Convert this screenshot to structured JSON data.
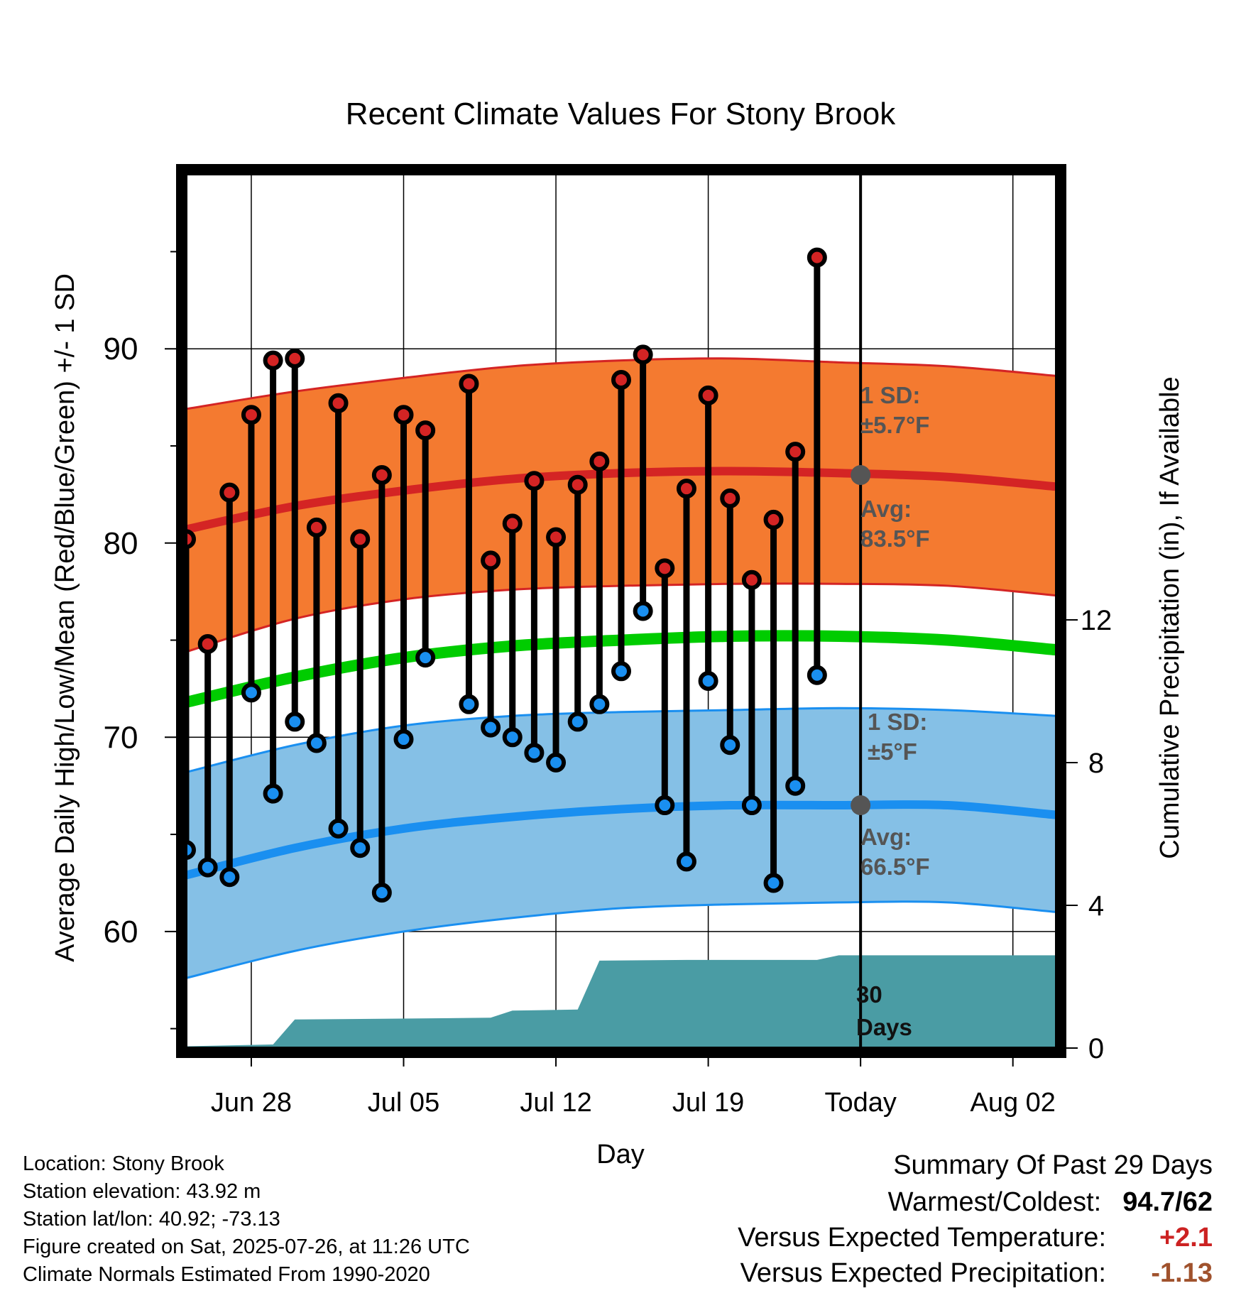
{
  "title": "Recent Climate Values For Stony Brook",
  "y_left_label": "Average Daily High/Low/Mean (Red/Blue/Green) +/- 1 SD",
  "y_right_label": "Cumulative Precipitation (in), If Available",
  "x_label": "Day",
  "annotations": {
    "high_sd_line1": "1 SD:",
    "high_sd_line2": "±5.7°F",
    "high_avg_line1": "Avg:",
    "high_avg_line2": "83.5°F",
    "low_sd_line1": "1 SD:",
    "low_sd_line2": "±5°F",
    "low_avg_line1": "Avg:",
    "low_avg_line2": "66.5°F",
    "days_line1": "30",
    "days_line2": "Days"
  },
  "info": {
    "location": "Location: Stony Brook",
    "elevation": "Station elevation: 43.92 m",
    "latlon": "Station lat/lon: 40.92; -73.13",
    "created": "Figure created on Sat, 2025-07-26, at 11:26 UTC",
    "normals": "Climate Normals Estimated From 1990-2020"
  },
  "summary": {
    "heading": "Summary Of Past 29 Days",
    "warm_cold_label": "Warmest/Coldest:",
    "warm_cold_value": "94.7/62",
    "temp_label": "Versus Expected Temperature:",
    "temp_value": "+2.1",
    "precip_label": "Versus Expected Precipitation:",
    "precip_value": "-1.13"
  },
  "colors": {
    "high_band": "#f47a30",
    "high_line": "#d42424",
    "mean_line": "#00cc00",
    "low_band": "#85c0e6",
    "low_line": "#1a8ff0",
    "precip": "#4a9ca4",
    "annotation_text": "#555555",
    "temp_value": "#cc2222",
    "precip_value": "#a0522d"
  },
  "chart_data": {
    "type": "line",
    "title": "Recent Climate Values For Stony Brook",
    "xlabel": "Day",
    "ylabel": "Average Daily High/Low/Mean (Red/Blue/Green) +/- 1 SD",
    "y2label": "Cumulative Precipitation (in), If Available",
    "x_range": [
      "2025-06-25",
      "2025-08-04"
    ],
    "ylim": [
      54,
      99
    ],
    "y2lim": [
      0,
      24.5
    ],
    "x_ticks": [
      {
        "date": "2025-06-28",
        "label": "Jun 28"
      },
      {
        "date": "2025-07-05",
        "label": "Jul 05"
      },
      {
        "date": "2025-07-12",
        "label": "Jul 12"
      },
      {
        "date": "2025-07-19",
        "label": "Jul 19"
      },
      {
        "date": "2025-07-26",
        "label": "Today"
      },
      {
        "date": "2025-08-02",
        "label": "Aug 02"
      }
    ],
    "y_ticks": [
      60,
      70,
      80,
      90
    ],
    "y_minor_ticks": [
      55,
      65,
      75,
      85,
      95
    ],
    "y2_ticks": [
      0,
      4,
      8,
      12
    ],
    "today": "2025-07-26",
    "grid": true,
    "normals": {
      "dates": [
        "2025-06-25",
        "2025-06-30",
        "2025-07-05",
        "2025-07-10",
        "2025-07-15",
        "2025-07-20",
        "2025-07-25",
        "2025-07-30",
        "2025-08-04"
      ],
      "high_avg": [
        80.7,
        81.9,
        82.7,
        83.3,
        83.6,
        83.7,
        83.6,
        83.4,
        82.9
      ],
      "high_upper": [
        86.9,
        87.8,
        88.5,
        89.1,
        89.4,
        89.5,
        89.3,
        89.1,
        88.6
      ],
      "high_lower": [
        74.4,
        76.1,
        77.1,
        77.6,
        77.8,
        77.9,
        77.9,
        77.8,
        77.3
      ],
      "mean": [
        71.8,
        73.1,
        74.1,
        74.7,
        75.0,
        75.2,
        75.2,
        75.0,
        74.5
      ],
      "low_avg": [
        62.9,
        64.3,
        65.3,
        65.9,
        66.3,
        66.5,
        66.5,
        66.5,
        66.0
      ],
      "low_upper": [
        68.2,
        69.6,
        70.6,
        71.1,
        71.3,
        71.4,
        71.5,
        71.4,
        71.1
      ],
      "low_lower": [
        57.6,
        59.0,
        60.0,
        60.7,
        61.2,
        61.4,
        61.5,
        61.5,
        61.0
      ]
    },
    "daily": {
      "dates": [
        "2025-06-25",
        "2025-06-26",
        "2025-06-27",
        "2025-06-28",
        "2025-06-29",
        "2025-06-30",
        "2025-07-01",
        "2025-07-02",
        "2025-07-03",
        "2025-07-04",
        "2025-07-05",
        "2025-07-06",
        "2025-07-07",
        "2025-07-08",
        "2025-07-09",
        "2025-07-10",
        "2025-07-11",
        "2025-07-12",
        "2025-07-13",
        "2025-07-14",
        "2025-07-15",
        "2025-07-16",
        "2025-07-17",
        "2025-07-18",
        "2025-07-19",
        "2025-07-20",
        "2025-07-21",
        "2025-07-22",
        "2025-07-23",
        "2025-07-24",
        "2025-07-25"
      ],
      "high": [
        80.2,
        74.8,
        82.6,
        86.6,
        89.4,
        89.5,
        80.8,
        87.2,
        80.2,
        83.5,
        86.6,
        85.8,
        null,
        88.2,
        79.1,
        81.0,
        83.2,
        80.3,
        83.0,
        84.2,
        88.4,
        89.7,
        78.7,
        82.8,
        87.6,
        82.3,
        78.1,
        81.2,
        84.7,
        94.7,
        null
      ],
      "low": [
        64.2,
        63.3,
        62.8,
        72.3,
        67.1,
        70.8,
        69.7,
        65.3,
        64.3,
        62.0,
        69.9,
        74.1,
        null,
        71.7,
        70.5,
        70.0,
        69.2,
        68.7,
        70.8,
        71.7,
        73.4,
        76.5,
        66.5,
        63.6,
        72.9,
        69.6,
        66.5,
        62.5,
        67.5,
        73.2,
        null
      ]
    },
    "precip_cumulative": {
      "dates": [
        "2025-06-25",
        "2025-06-29",
        "2025-06-30",
        "2025-07-04",
        "2025-07-09",
        "2025-07-10",
        "2025-07-13",
        "2025-07-14",
        "2025-07-18",
        "2025-07-24",
        "2025-07-25",
        "2025-08-04"
      ],
      "values": [
        0.05,
        0.1,
        0.8,
        0.82,
        0.85,
        1.05,
        1.08,
        2.45,
        2.47,
        2.47,
        2.6,
        2.6
      ]
    }
  }
}
